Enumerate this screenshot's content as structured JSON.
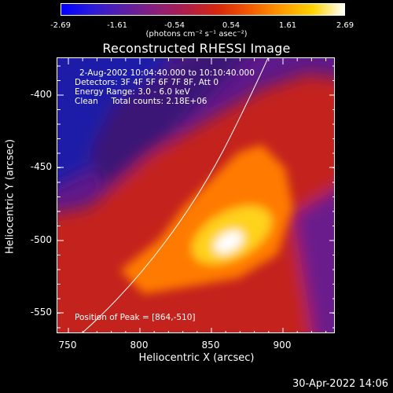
{
  "colorbar": {
    "ticks": [
      "-2.69",
      "-1.61",
      "-0.54",
      "0.54",
      "1.61",
      "2.69"
    ],
    "unit": "(photons cm⁻² s⁻¹ asec⁻²)",
    "colors": [
      "#0000ff",
      "#2e1bd9",
      "#5c1fa6",
      "#8a1f7a",
      "#b01e48",
      "#d8280d",
      "#f45a00",
      "#ff9a00",
      "#ffd300",
      "#ffffff"
    ]
  },
  "plot": {
    "title": "Reconstructed RHESSI Image",
    "xlabel": "Heliocentric X (arcsec)",
    "ylabel": "Heliocentric Y (arcsec)",
    "xticks": [
      "750",
      "800",
      "850",
      "900"
    ],
    "yticks": [
      "-400",
      "-450",
      "-500",
      "-550"
    ],
    "info": [
      "2-Aug-2002 10:04:40.000 to 10:10:40.000",
      "Detectors: 3F 4F 5F 6F 7F 8F, Att 0",
      "Energy Range: 3.0 - 6.0 keV",
      "Clean     Total counts: 2.18E+06"
    ],
    "peak_text": "Position of Peak = [864,-510]",
    "palette": {
      "cold": "#1a1aa0",
      "purple": "#6a1f8c",
      "warm": "#d02818",
      "orange": "#ff8a00",
      "yellow": "#ffe21a",
      "white": "#ffffff"
    }
  },
  "footer": {
    "timestamp": "30-Apr-2022 14:06"
  }
}
